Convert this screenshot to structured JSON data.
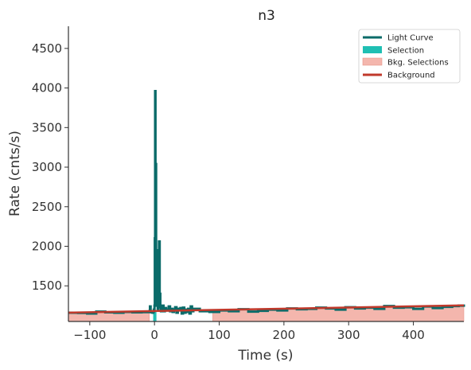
{
  "chart_data": {
    "type": "line",
    "title": "n3",
    "xlabel": "Time (s)",
    "ylabel": "Rate (cnts/s)",
    "xlim": [
      -133,
      478
    ],
    "ylim": [
      1050,
      4780
    ],
    "xticks": [
      -100,
      0,
      100,
      200,
      300,
      400
    ],
    "yticks": [
      1500,
      2000,
      2500,
      3000,
      3500,
      4000,
      4500
    ],
    "xtick_labels": [
      "−100",
      "0",
      "100",
      "200",
      "300",
      "400"
    ],
    "ytick_labels": [
      "1500",
      "2000",
      "2500",
      "3000",
      "3500",
      "4000",
      "4500"
    ],
    "legend": {
      "placement": "top-right",
      "entries": [
        {
          "label": "Light Curve",
          "kind": "line",
          "color": "#0a6b69"
        },
        {
          "label": "Selection",
          "kind": "patch",
          "color": "#1fbfb3"
        },
        {
          "label": "Bkg. Selections",
          "kind": "patch",
          "color": "#f4b6ad"
        },
        {
          "label": "Background",
          "kind": "line",
          "color": "#c0392b"
        }
      ]
    },
    "selection": [
      -2,
      3
    ],
    "bkg_selections": [
      [
        -133,
        -8
      ],
      [
        90,
        478
      ]
    ],
    "background": {
      "x": [
        -133,
        478
      ],
      "y": [
        1162,
        1253
      ]
    },
    "light_curve": {
      "series_name": "Light Curve",
      "x": [
        -133,
        -118,
        -104,
        -90,
        -76,
        -62,
        -48,
        -34,
        -20,
        -8,
        -7,
        -6,
        -5,
        -4,
        -3,
        -2,
        -1,
        0,
        0.5,
        1,
        1.5,
        2,
        2.5,
        3,
        3.5,
        4,
        5,
        6,
        7,
        8,
        9,
        10,
        11,
        12,
        14,
        16,
        18,
        20,
        22,
        24,
        26,
        28,
        30,
        32,
        34,
        36,
        38,
        40,
        42,
        44,
        46,
        48,
        50,
        52,
        54,
        56,
        58,
        60,
        70,
        85,
        100,
        115,
        130,
        145,
        160,
        175,
        190,
        205,
        220,
        235,
        250,
        265,
        280,
        295,
        310,
        325,
        340,
        355,
        370,
        385,
        400,
        415,
        430,
        445,
        460,
        470,
        478
      ],
      "y": [
        1160,
        1158,
        1150,
        1175,
        1165,
        1160,
        1170,
        1165,
        1168,
        1180,
        1240,
        1180,
        1165,
        1170,
        1160,
        1175,
        1200,
        1250,
        2100,
        3960,
        1800,
        3040,
        1500,
        1800,
        1300,
        1250,
        1210,
        1950,
        2060,
        1400,
        1230,
        1180,
        1200,
        1250,
        1180,
        1220,
        1200,
        1190,
        1240,
        1180,
        1210,
        1170,
        1200,
        1230,
        1160,
        1210,
        1190,
        1220,
        1150,
        1225,
        1160,
        1200,
        1170,
        1210,
        1150,
        1240,
        1180,
        1210,
        1180,
        1170,
        1190,
        1180,
        1205,
        1175,
        1185,
        1200,
        1190,
        1215,
        1205,
        1210,
        1225,
        1215,
        1200,
        1230,
        1215,
        1225,
        1210,
        1245,
        1225,
        1230,
        1210,
        1240,
        1220,
        1235,
        1245,
        1250,
        1265
      ]
    }
  }
}
